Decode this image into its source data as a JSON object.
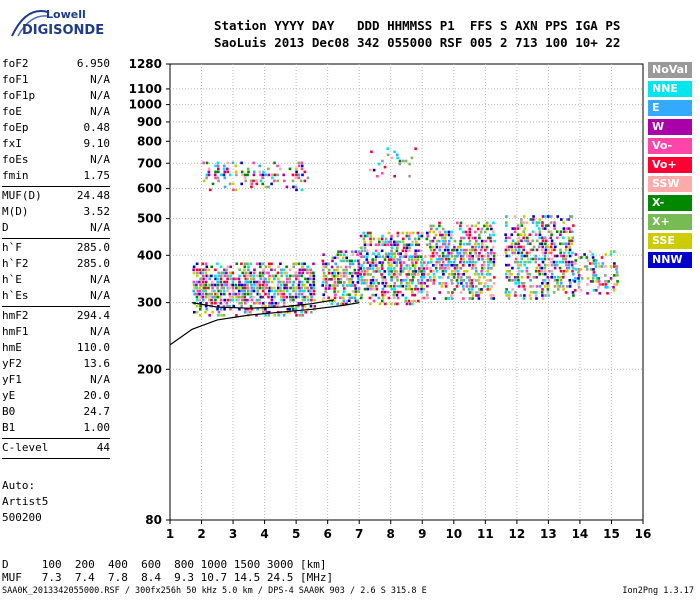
{
  "logo": {
    "line1": "Lowell",
    "line2": "DIGISONDE"
  },
  "header": {
    "line1": "Station YYYY DAY   DDD HHMMSS P1  FFS S AXN PPS IGA PS",
    "line2": "SaoLuis 2013 Dec08 342 055000 RSF 005 2 713 100 10+ 22"
  },
  "params": {
    "group1": [
      {
        "name": "foF2",
        "value": "6.950"
      },
      {
        "name": "foF1",
        "value": "N/A"
      },
      {
        "name": "foF1p",
        "value": "N/A"
      },
      {
        "name": "foE",
        "value": "N/A"
      },
      {
        "name": "foEp",
        "value": "0.48"
      },
      {
        "name": "fxI",
        "value": "9.10"
      },
      {
        "name": "foEs",
        "value": "N/A"
      },
      {
        "name": "fmin",
        "value": "1.75"
      }
    ],
    "group2": [
      {
        "name": "MUF(D)",
        "value": "24.48"
      },
      {
        "name": "M(D)",
        "value": "3.52"
      },
      {
        "name": "D",
        "value": "N/A"
      }
    ],
    "group3": [
      {
        "name": "h`F",
        "value": "285.0"
      },
      {
        "name": "h`F2",
        "value": "285.0"
      },
      {
        "name": "h`E",
        "value": "N/A"
      },
      {
        "name": "h`Es",
        "value": "N/A"
      }
    ],
    "group4": [
      {
        "name": "hmF2",
        "value": "294.4"
      },
      {
        "name": "hmF1",
        "value": "N/A"
      },
      {
        "name": "hmE",
        "value": "110.0"
      },
      {
        "name": "yF2",
        "value": "13.6"
      },
      {
        "name": "yF1",
        "value": "N/A"
      },
      {
        "name": "yE",
        "value": "20.0"
      },
      {
        "name": "B0",
        "value": "24.7"
      },
      {
        "name": "B1",
        "value": "1.00"
      }
    ],
    "group5": [
      {
        "name": "C-level",
        "value": "44"
      }
    ]
  },
  "auto": {
    "line1": "Auto:",
    "line2": "Artist5",
    "line3": "500200"
  },
  "footer": {
    "line1": "D     100  200  400  600  800 1000 1500 3000 [km]",
    "line2": "MUF   7.3  7.4  7.8  8.4  9.3 10.7 14.5 24.5 [MHz]",
    "file": "SAA0K_2013342055000.RSF / 300fx256h 50 kHz 5.0 km / DPS-4 SAA0K 903 / 2.6 S 315.8 E",
    "version": "Ion2Png 1.3.17"
  },
  "legend": [
    {
      "label": "NoVal",
      "color": "#9a9a9a"
    },
    {
      "label": "NNE",
      "color": "#00e5ee"
    },
    {
      "label": "E",
      "color": "#33aaff"
    },
    {
      "label": "W",
      "color": "#aa00aa"
    },
    {
      "label": "Vo-",
      "color": "#ff44aa"
    },
    {
      "label": "Vo+",
      "color": "#ff0033"
    },
    {
      "label": "SSW",
      "color": "#ffaaaa"
    },
    {
      "label": "X-",
      "color": "#008800"
    },
    {
      "label": "X+",
      "color": "#77bb55"
    },
    {
      "label": "SSE",
      "color": "#cccc00"
    },
    {
      "label": "NNW",
      "color": "#0000cc"
    }
  ],
  "chart_data": {
    "type": "scatter",
    "title": "",
    "xlabel": "",
    "ylabel": "",
    "xlim": [
      1,
      16
    ],
    "ylim": [
      80,
      1280
    ],
    "y_scale": "log",
    "x_ticks": [
      1,
      2,
      3,
      4,
      5,
      6,
      7,
      8,
      9,
      10,
      11,
      12,
      13,
      14,
      15,
      16
    ],
    "y_ticks": [
      80,
      200,
      300,
      400,
      500,
      600,
      700,
      800,
      900,
      1000,
      1100,
      1280
    ],
    "grid": true,
    "legend_position": "right",
    "echo_clusters": [
      {
        "freq_range": [
          1.7,
          5.6
        ],
        "height_range": [
          280,
          390
        ],
        "density": 0.9
      },
      {
        "freq_range": [
          5.8,
          7.0
        ],
        "height_range": [
          300,
          420
        ],
        "density": 0.8
      },
      {
        "freq_range": [
          7.0,
          9.2
        ],
        "height_range": [
          300,
          470
        ],
        "density": 0.85
      },
      {
        "freq_range": [
          9.2,
          11.3
        ],
        "height_range": [
          310,
          500
        ],
        "density": 0.8
      },
      {
        "freq_range": [
          11.6,
          13.8
        ],
        "height_range": [
          310,
          520
        ],
        "density": 0.7
      },
      {
        "freq_range": [
          13.8,
          15.2
        ],
        "height_range": [
          320,
          420
        ],
        "density": 0.5
      },
      {
        "freq_range": [
          2.0,
          5.4
        ],
        "height_range": [
          600,
          720
        ],
        "density": 0.35
      },
      {
        "freq_range": [
          7.3,
          8.8
        ],
        "height_range": [
          640,
          800
        ],
        "density": 0.2
      }
    ],
    "trace_lines": [
      {
        "name": "O-trace",
        "x": [
          1.0,
          1.7,
          2.5,
          3.5,
          4.5,
          5.5,
          6.5,
          7.0
        ],
        "y": [
          232,
          255,
          270,
          278,
          283,
          288,
          295,
          300
        ]
      },
      {
        "name": "X-trace",
        "x": [
          1.7,
          2.5,
          3.5,
          4.5,
          5.5,
          6.2
        ],
        "y": [
          300,
          292,
          290,
          292,
          298,
          305
        ]
      }
    ]
  }
}
